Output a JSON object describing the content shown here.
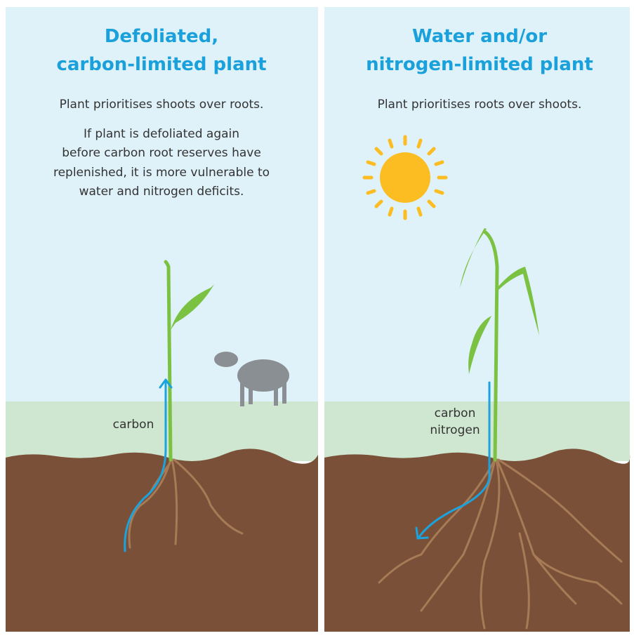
{
  "panels": [
    {
      "title": [
        "Defoliated,",
        "carbon-limited plant"
      ],
      "text": [
        "Plant prioritises shoots over roots."
      ],
      "note": [
        "If plant is defoliated again",
        "before carbon root reserves have",
        "replenished, it is more vulnerable to",
        "water and nitrogen deficits."
      ],
      "labels": [
        "carbon"
      ]
    },
    {
      "title": [
        "Water and/or",
        "nitrogen-limited plant"
      ],
      "text": [
        "Plant prioritises roots over shoots."
      ],
      "labels": [
        "carbon",
        "nitrogen"
      ]
    }
  ]
}
